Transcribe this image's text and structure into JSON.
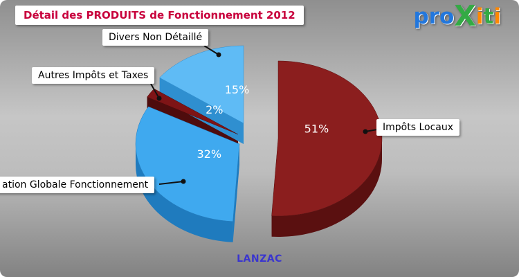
{
  "header": {
    "title": "Détail des PRODUITS de Fonctionnement 2012"
  },
  "logo": {
    "brand": "proXiti",
    "letters": [
      {
        "ch": "p",
        "color": "#2277DD",
        "big": false
      },
      {
        "ch": "r",
        "color": "#2277DD",
        "big": false
      },
      {
        "ch": "o",
        "color": "#2277DD",
        "big": false
      },
      {
        "ch": "X",
        "color": "#33AA44",
        "big": true
      },
      {
        "ch": "i",
        "color": "#FF8800",
        "big": false
      },
      {
        "ch": "t",
        "color": "#33AA44",
        "big": false
      },
      {
        "ch": "i",
        "color": "#FF8800",
        "big": false
      }
    ]
  },
  "footer": {
    "location": "LANZAC"
  },
  "chart_data": {
    "type": "pie",
    "style": "3d-exploded",
    "title": "Détail des PRODUITS de Fonctionnement 2012",
    "start_angle_deg": -90,
    "direction": "clockwise",
    "unit": "%",
    "slices": [
      {
        "label": "Impôts Locaux",
        "value": 51,
        "color": "#8B1E1E",
        "side_color": "#5A1010"
      },
      {
        "label": "Dotation Globale Fonctionnement",
        "value": 32,
        "color": "#3FA9EF",
        "side_color": "#1F7BBE"
      },
      {
        "label": "Autres Impôts et Taxes",
        "value": 2,
        "color": "#7E1416",
        "side_color": "#4E0C0D"
      },
      {
        "label": "Divers Non Détaillé",
        "value": 15,
        "color": "#5FBBF5",
        "side_color": "#2F8FD0"
      }
    ],
    "callouts": [
      {
        "slice": "Divers Non Détaillé",
        "text": "Divers Non Détaillé"
      },
      {
        "slice": "Autres Impôts et Taxes",
        "text": "Autres Impôts et Taxes"
      },
      {
        "slice": "Impôts Locaux",
        "text": "Impôts Locaux"
      },
      {
        "slice": "Dotation Globale Fonctionnement",
        "text": "ation Globale Fonctionnement"
      }
    ]
  },
  "colors": {
    "title": "#C8003C",
    "footer_text": "#3A35CF",
    "label_box_bg": "#FFFFFF",
    "label_text": "#000000",
    "percent_text": "#FFFFFF",
    "leader_line": "#111111",
    "background_top": "#8F8F8F",
    "background_mid": "#C6C6C6",
    "background_bottom": "#828282"
  }
}
